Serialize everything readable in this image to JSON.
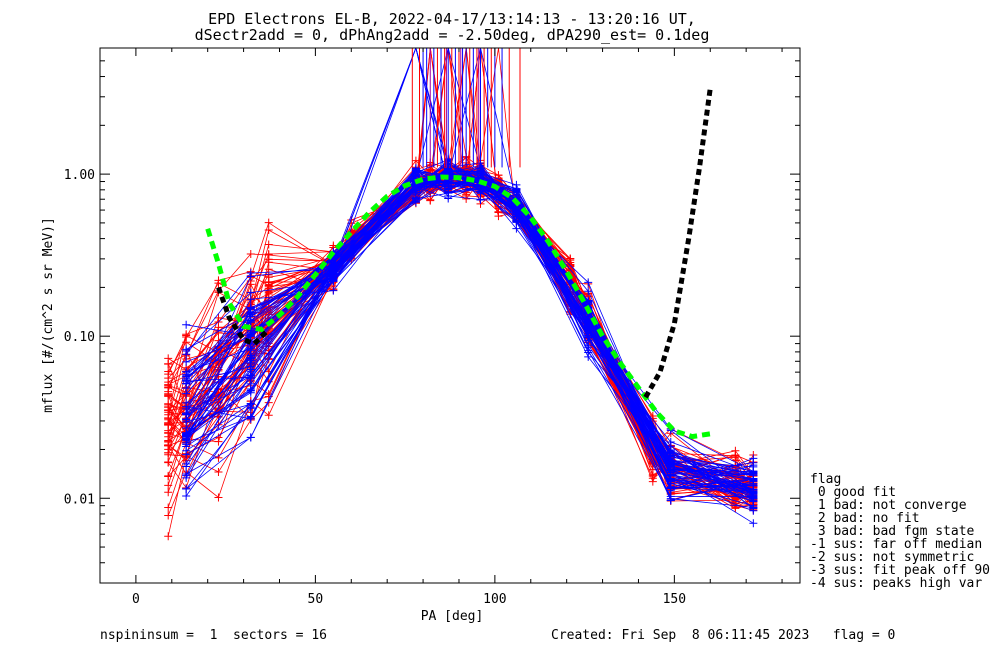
{
  "chart_data": {
    "type": "line",
    "title_line1": "EPD Electrons EL-B, 2022-04-17/13:14:13 - 13:20:16 UT,",
    "title_line2": "dSectr2add = 0, dPhAng2add = -2.50deg, dPA290_est=   0.1deg",
    "xlabel": "PA [deg]",
    "ylabel": "mflux [#/(cm^2 s sr MeV)]",
    "xlim": [
      -10,
      185
    ],
    "ylim": [
      0.003,
      6.0
    ],
    "yscale": "log",
    "x_ticks": [
      0,
      50,
      100,
      150
    ],
    "y_ticks": [
      0.01,
      0.1,
      1.0
    ],
    "x_tick_labels": [
      "0",
      "50",
      "100",
      "150"
    ],
    "y_tick_labels": [
      "0.01",
      "0.10",
      "1.00"
    ],
    "pa_bins": [
      9,
      14,
      23,
      32,
      37,
      55,
      60,
      78,
      82,
      87,
      92,
      96,
      101,
      106,
      121,
      126,
      144,
      149,
      167,
      172
    ],
    "series": [
      {
        "color": "#ff0000",
        "style": "thin-lines-with-plus-markers",
        "count": 60
      },
      {
        "color": "#0000ff",
        "style": "thin-lines-with-plus-markers",
        "count": 60
      },
      {
        "color": "#00ff00",
        "style": "thick-dashed",
        "x": [
          20,
          23,
          26,
          30,
          35,
          40,
          45,
          50,
          55,
          60,
          65,
          70,
          75,
          80,
          85,
          90,
          95,
          100,
          105,
          110,
          115,
          120,
          125,
          130,
          135,
          140,
          145,
          150,
          155,
          160
        ],
        "y": [
          0.46,
          0.28,
          0.16,
          0.115,
          0.11,
          0.135,
          0.175,
          0.24,
          0.33,
          0.44,
          0.58,
          0.73,
          0.85,
          0.93,
          0.96,
          0.95,
          0.91,
          0.84,
          0.71,
          0.54,
          0.38,
          0.25,
          0.16,
          0.1,
          0.068,
          0.048,
          0.034,
          0.026,
          0.024,
          0.025
        ]
      },
      {
        "color": "#000000",
        "style": "thick-dashed",
        "x": [
          23,
          26,
          30,
          33,
          37,
          142,
          146,
          150,
          154,
          157,
          160
        ],
        "y": [
          0.2,
          0.13,
          0.095,
          0.09,
          0.11,
          0.042,
          0.06,
          0.12,
          0.4,
          1.1,
          3.4
        ]
      }
    ]
  },
  "legend": {
    "title": "flag",
    "entries": [
      " 0 good fit",
      " 1 bad: not converge",
      " 2 bad: no fit",
      " 3 bad: bad fgm state",
      "-1 sus: far off median",
      "-2 sus: not symmetric",
      "-3 sus: fit peak off 90",
      "-4 sus: peaks high var"
    ]
  },
  "footer": {
    "left": "nspininsum =  1  sectors = 16",
    "right": "Created: Fri Sep  8 06:11:45 2023   flag = 0"
  },
  "colors": {
    "red": "#ff0000",
    "blue": "#0000ff",
    "green": "#00ff00",
    "black": "#000000"
  }
}
